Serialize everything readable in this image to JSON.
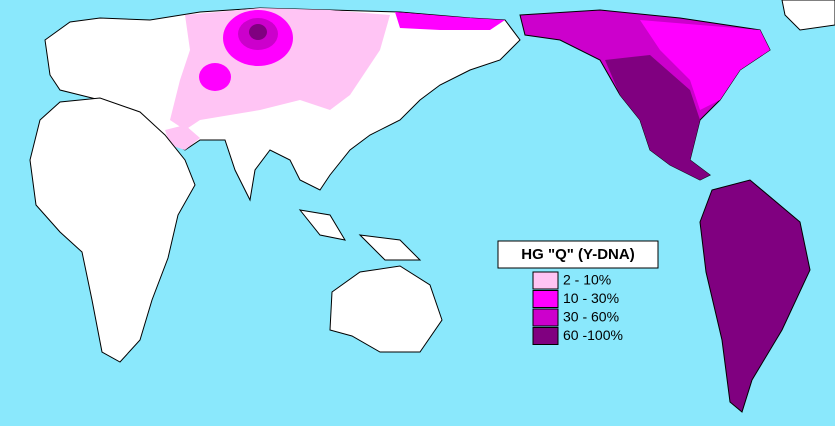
{
  "title": "HG  \"Q\" (Y-DNA)",
  "legend": [
    {
      "label": "2  - 10%",
      "color": "#ffc4f4"
    },
    {
      "label": "10 - 30%",
      "color": "#ff00ff"
    },
    {
      "label": "30 - 60%",
      "color": "#cc00cc"
    },
    {
      "label": "60 -100%",
      "color": "#800080"
    }
  ]
}
